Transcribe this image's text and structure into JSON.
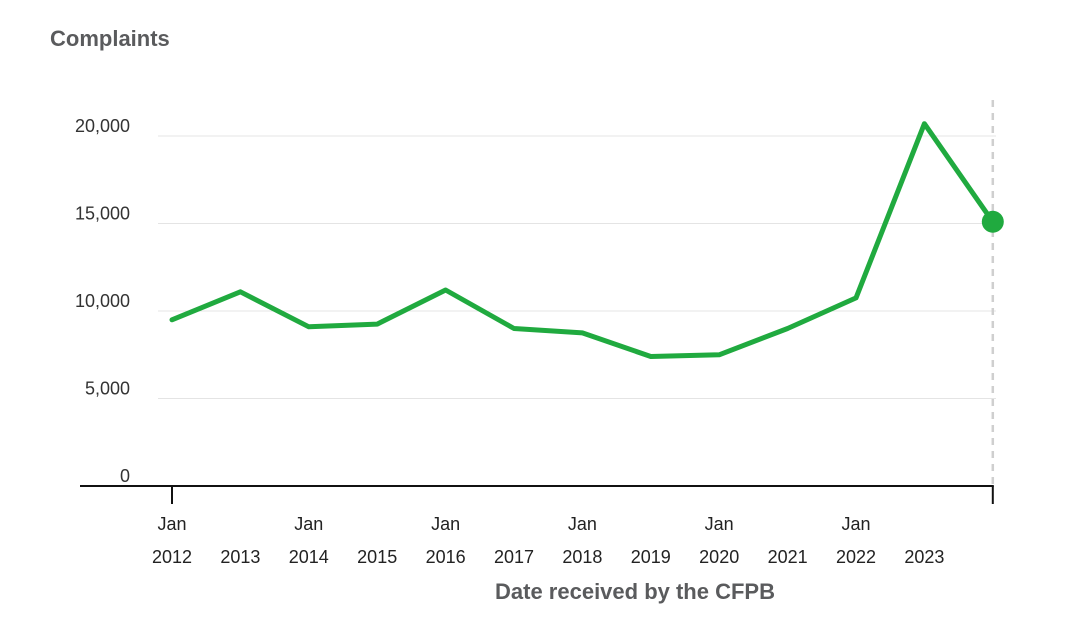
{
  "chart_data": {
    "type": "line",
    "title": "Complaints",
    "xlabel": "Date received by the CFPB",
    "ylabel": "",
    "ylim": [
      0,
      22000
    ],
    "xlim": [
      "2012-01",
      "2024-01"
    ],
    "y_ticks": [
      0,
      5000,
      10000,
      15000,
      20000
    ],
    "y_tick_labels": [
      "0",
      "5,000",
      "10,000",
      "15,000",
      "20,000"
    ],
    "x_ticks": [
      {
        "x": "2012-01",
        "month": "Jan",
        "year": "2012"
      },
      {
        "x": "2013-01",
        "month": "",
        "year": "2013"
      },
      {
        "x": "2014-01",
        "month": "Jan",
        "year": "2014"
      },
      {
        "x": "2015-01",
        "month": "",
        "year": "2015"
      },
      {
        "x": "2016-01",
        "month": "Jan",
        "year": "2016"
      },
      {
        "x": "2017-01",
        "month": "",
        "year": "2017"
      },
      {
        "x": "2018-01",
        "month": "Jan",
        "year": "2018"
      },
      {
        "x": "2019-01",
        "month": "",
        "year": "2019"
      },
      {
        "x": "2020-01",
        "month": "Jan",
        "year": "2020"
      },
      {
        "x": "2021-01",
        "month": "",
        "year": "2021"
      },
      {
        "x": "2022-01",
        "month": "Jan",
        "year": "2022"
      },
      {
        "x": "2023-01",
        "month": "",
        "year": "2023"
      }
    ],
    "grid": true,
    "legend": "none",
    "series": [
      {
        "color": "#20aa3f",
        "x": [
          "2012-01",
          "2013-01",
          "2014-01",
          "2015-01",
          "2016-01",
          "2017-01",
          "2018-01",
          "2019-01",
          "2020-01",
          "2021-01",
          "2022-01",
          "2023-01",
          "2024-01"
        ],
        "values": [
          9500,
          11100,
          9100,
          9250,
          11200,
          9000,
          8750,
          7400,
          7500,
          9000,
          10750,
          20700,
          15100
        ]
      }
    ],
    "highlight": {
      "x": "2024-01",
      "value": 15100
    }
  }
}
